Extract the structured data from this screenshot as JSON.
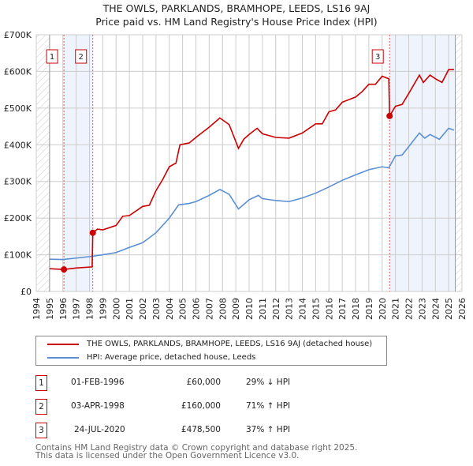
{
  "chart_data": {
    "type": "line",
    "title": "THE OWLS, PARKLANDS, BRAMHOPE, LEEDS, LS16 9AJ",
    "subtitle": "Price paid vs. HM Land Registry's House Price Index (HPI)",
    "xlim": [
      1994,
      2026
    ],
    "ylim": [
      0,
      700000
    ],
    "x_ticks": [
      "1994",
      "1995",
      "1996",
      "1997",
      "1998",
      "1999",
      "2000",
      "2001",
      "2002",
      "2003",
      "2004",
      "2005",
      "2006",
      "2007",
      "2008",
      "2009",
      "2010",
      "2011",
      "2012",
      "2013",
      "2014",
      "2015",
      "2016",
      "2017",
      "2018",
      "2019",
      "2020",
      "2021",
      "2022",
      "2023",
      "2024",
      "2025",
      "2026"
    ],
    "y_ticks": [
      {
        "v": 0,
        "label": "£0"
      },
      {
        "v": 100000,
        "label": "£100K"
      },
      {
        "v": 200000,
        "label": "£200K"
      },
      {
        "v": 300000,
        "label": "£300K"
      },
      {
        "v": 400000,
        "label": "£400K"
      },
      {
        "v": 500000,
        "label": "£500K"
      },
      {
        "v": 600000,
        "label": "£600K"
      },
      {
        "v": 700000,
        "label": "£700K"
      }
    ],
    "series": [
      {
        "name": "THE OWLS, PARKLANDS, BRAMHOPE, LEEDS, LS16 9AJ (detached house)",
        "color": "#cc0000",
        "x": [
          1995,
          1996.08,
          1997,
          1998.2,
          1998.25,
          1998.6,
          1999,
          2000,
          2000.5,
          2001,
          2002,
          2002.5,
          2003,
          2003.5,
          2004,
          2004.5,
          2004.8,
          2005.5,
          2006,
          2007,
          2007.8,
          2008.5,
          2009.2,
          2009.6,
          2010,
          2010.6,
          2011,
          2012,
          2013,
          2014,
          2015,
          2015.5,
          2016,
          2016.5,
          2017,
          2018,
          2018.5,
          2019,
          2019.5,
          2020,
          2020.5,
          2020.56,
          2021,
          2021.5,
          2022,
          2022.8,
          2023.1,
          2023.6,
          2024,
          2024.5,
          2025,
          2025.4
        ],
        "y": [
          62000,
          60000,
          64000,
          67000,
          160000,
          170000,
          168000,
          180000,
          205000,
          207000,
          232000,
          235000,
          275000,
          305000,
          340000,
          350000,
          400000,
          405000,
          420000,
          448000,
          473000,
          455000,
          390000,
          415000,
          428000,
          445000,
          430000,
          420000,
          418000,
          432000,
          457000,
          457000,
          490000,
          495000,
          516000,
          530000,
          545000,
          565000,
          565000,
          587000,
          580000,
          478500,
          505000,
          510000,
          540000,
          590000,
          570000,
          590000,
          580000,
          570000,
          605000,
          605000
        ]
      },
      {
        "name": "HPI: Average price, detached house, Leeds",
        "color": "#5b8fd4",
        "x": [
          1995,
          1996,
          1997,
          1998,
          1999,
          2000,
          2001,
          2002,
          2003,
          2004,
          2004.7,
          2005.5,
          2006,
          2007,
          2007.8,
          2008.5,
          2009.2,
          2010,
          2010.7,
          2011,
          2012,
          2013,
          2014,
          2015,
          2016,
          2017,
          2018,
          2019,
          2020,
          2020.5,
          2021,
          2021.5,
          2022,
          2022.8,
          2023.2,
          2023.6,
          2024.3,
          2025,
          2025.4
        ],
        "y": [
          88000,
          87000,
          91000,
          95000,
          100000,
          106000,
          120000,
          133000,
          160000,
          200000,
          236000,
          240000,
          245000,
          262000,
          278000,
          265000,
          225000,
          250000,
          262000,
          253000,
          248000,
          245000,
          255000,
          268000,
          285000,
          303000,
          318000,
          332000,
          340000,
          337000,
          370000,
          372000,
          395000,
          432000,
          418000,
          428000,
          415000,
          445000,
          440000
        ]
      }
    ],
    "sales": [
      {
        "label": "1",
        "x": 1996.08,
        "date": "01-FEB-1996",
        "price": 60000,
        "price_text": "£60,000",
        "hpi": "29% ↓ HPI"
      },
      {
        "label": "2",
        "x": 1998.25,
        "date": "03-APR-1998",
        "price": 160000,
        "price_text": "£160,000",
        "hpi": "71% ↑ HPI"
      },
      {
        "label": "3",
        "x": 2020.56,
        "date": "24-JUL-2020",
        "price": 478500,
        "price_text": "£478,500",
        "hpi": "37% ↑ HPI"
      }
    ],
    "shaded_ranges": [
      [
        1996.08,
        1998.25
      ],
      [
        2020.56,
        2025.5
      ]
    ],
    "data_end": 2025.5,
    "data_start": 1995,
    "legend_position": "below"
  },
  "footer": [
    "Contains HM Land Registry data © Crown copyright and database right 2025.",
    "This data is licensed under the Open Government Licence v3.0."
  ]
}
